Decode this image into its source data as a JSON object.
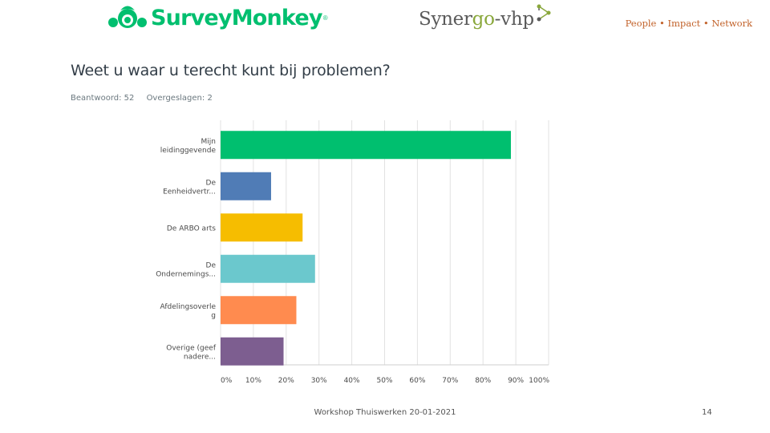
{
  "header": {
    "surveymonkey_logo": "SurveyMonkey",
    "surveymonkey_reg": "®",
    "synergo_logo_part1": "Synergo",
    "synergo_logo_part2": "-vhp",
    "tagline": "People • Impact • Network",
    "brand_color": "#00bf6f",
    "synergo_green": "#8aa83c",
    "tagline_color": "#c2622a"
  },
  "question": {
    "title": "Weet u waar u terecht kunt bij problemen?",
    "answered_label": "Beantwoord: 52",
    "skipped_label": "Overgeslagen: 2"
  },
  "chart_data": {
    "type": "bar",
    "orientation": "horizontal",
    "categories": [
      [
        "Mijn",
        "leidinggevende"
      ],
      [
        "De",
        "Eenheidvertr..."
      ],
      [
        "De ARBO arts"
      ],
      [
        "De",
        "Ondernemings..."
      ],
      [
        "Afdelingsoverle",
        "g"
      ],
      [
        "Overige (geef",
        "nadere..."
      ]
    ],
    "values": [
      88.5,
      15.4,
      25.0,
      28.8,
      23.1,
      19.2
    ],
    "colors": [
      "#00bf6f",
      "#507cb6",
      "#f6bd00",
      "#6bc8cd",
      "#ff8b4f",
      "#7d5e90"
    ],
    "xlim": [
      0,
      100
    ],
    "xticks": [
      "0%",
      "10%",
      "20%",
      "30%",
      "40%",
      "50%",
      "60%",
      "70%",
      "80%",
      "90%",
      "100%"
    ],
    "grid": true,
    "title": "",
    "xlabel": "",
    "ylabel": ""
  },
  "footer": {
    "text": "Workshop Thuiswerken 20-01-2021",
    "page_number": "14"
  }
}
